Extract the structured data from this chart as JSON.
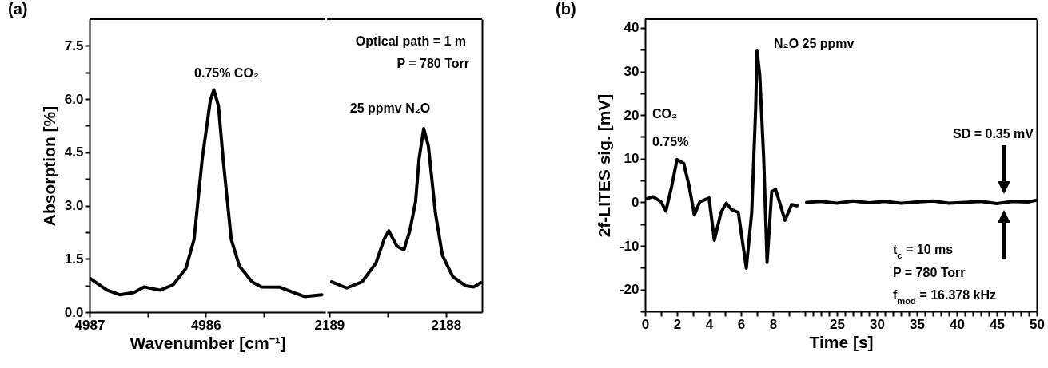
{
  "chart_data": [
    {
      "type": "line",
      "title": "(a)",
      "xlabel": "Wavenumber [cm⁻¹]",
      "ylabel": "Absorption [%]",
      "xlim": [
        4987,
        4984.97
      ],
      "ylim": [
        0,
        8.25
      ],
      "xticks": [
        4987,
        {
          "value": 4986.5,
          "label": null
        },
        4986,
        {
          "value": 4985.5,
          "label": null
        }
      ],
      "yticks": [
        {
          "value": 0,
          "label": "0.0"
        },
        {
          "value": 0.75,
          "label": null
        },
        1.5,
        {
          "value": 2.25,
          "label": null
        },
        {
          "value": 3,
          "label": "3.0"
        },
        {
          "value": 3.75,
          "label": null
        },
        4.5,
        {
          "value": 5.25,
          "label": null
        },
        {
          "value": 6,
          "label": "6.0"
        },
        {
          "value": 6.75,
          "label": null
        },
        7.5
      ],
      "x": [
        4987,
        4986.85,
        4986.74,
        4986.62,
        4986.53,
        4986.46,
        4986.39,
        4986.28,
        4986.17,
        4986.1,
        4986.03,
        4985.96,
        4985.93,
        4985.89,
        4985.85,
        4985.78,
        4985.71,
        4985.6,
        4985.52,
        4985.36,
        4985.24,
        4985.15,
        4985.0
      ],
      "series": [
        {
          "color": "#000000",
          "values": [
            0.96,
            0.62,
            0.49,
            0.55,
            0.71,
            0.66,
            0.62,
            0.77,
            1.23,
            2.05,
            4.31,
            5.96,
            6.26,
            5.81,
            4.31,
            2.05,
            1.3,
            0.85,
            0.71,
            0.7,
            0.55,
            0.44,
            0.49
          ]
        }
      ],
      "annotations": [
        {
          "text": "0.75% CO₂",
          "x": 4985.93,
          "y": 6.26
        }
      ]
    },
    {
      "type": "line",
      "xlim": [
        2189.02,
        2187.69
      ],
      "ylim": [
        0,
        8.25
      ],
      "tick_labels": "x",
      "xticks": [
        2189,
        {
          "value": 2188.5,
          "label": null
        },
        2188
      ],
      "x": [
        2188.98,
        2188.85,
        2188.72,
        2188.6,
        2188.53,
        2188.49,
        2188.42,
        2188.36,
        2188.31,
        2188.26,
        2188.23,
        2188.19,
        2188.15,
        2188.09,
        2188.03,
        2187.94,
        2187.83,
        2187.76,
        2187.7
      ],
      "series": [
        {
          "color": "#000000",
          "values": [
            0.85,
            0.68,
            0.85,
            1.38,
            2.05,
            2.29,
            1.86,
            1.75,
            2.28,
            3.11,
            4.31,
            5.17,
            4.68,
            2.8,
            1.6,
            1.0,
            0.74,
            0.71,
            0.83
          ]
        }
      ],
      "annotations": [
        "Optical path = 1 m",
        "P = 780 Torr",
        {
          "text": "25 ppmv N₂O",
          "x": 2188.19,
          "y": 5.17
        }
      ]
    },
    {
      "type": "line",
      "title": "(b)",
      "ylabel": "2f-LITES sig. [mV]",
      "xlim": [
        0,
        9.75
      ],
      "ylim": [
        -25,
        42
      ],
      "xticks": [
        0,
        {
          "value": 1,
          "label": null
        },
        2,
        {
          "value": 3,
          "label": null
        },
        4,
        {
          "value": 5,
          "label": null
        },
        6,
        {
          "value": 7,
          "label": null
        },
        8,
        {
          "value": 9,
          "label": null
        }
      ],
      "yticks": [
        {
          "value": -25,
          "label": null
        },
        -20,
        {
          "value": -15,
          "label": null
        },
        -10,
        {
          "value": -5,
          "label": null
        },
        0,
        {
          "value": 5,
          "label": null
        },
        10,
        {
          "value": 15,
          "label": null
        },
        20,
        {
          "value": 25,
          "label": null
        },
        30,
        {
          "value": 35,
          "label": null
        },
        40
      ],
      "x": [
        0,
        0.5,
        1,
        1.3,
        1.67,
        2,
        2.42,
        2.75,
        3.08,
        3.42,
        4,
        4.33,
        4.75,
        5.08,
        5.42,
        5.83,
        6.33,
        6.67,
        6.92,
        7,
        7.17,
        7.42,
        7.63,
        7.92,
        8.17,
        8.75,
        9.17,
        9.5
      ],
      "series": [
        {
          "color": "#000000",
          "values": [
            0.7,
            1.3,
            0.1,
            -2,
            3.8,
            9.8,
            8.9,
            3.8,
            -2.9,
            0.1,
            1,
            -8.7,
            -2.3,
            -0.2,
            -1.7,
            -2.3,
            -15.1,
            -2.3,
            22,
            34.7,
            29.3,
            9.8,
            -13.8,
            2.5,
            2.9,
            -4.1,
            -0.5,
            -0.8
          ]
        }
      ],
      "annotations": [
        "CO₂",
        "0.75%",
        {
          "text": "N₂O 25 ppmv",
          "x": 7,
          "y": 34.7
        }
      ]
    },
    {
      "type": "line",
      "xlabel": "Time [s]",
      "xlim": [
        20.5,
        50
      ],
      "ylim": [
        -25,
        42
      ],
      "tick_labels": "x",
      "xticks": [
        {
          "value": 21,
          "label": null
        },
        {
          "value": 22,
          "label": null
        },
        {
          "value": 23,
          "label": null
        },
        {
          "value": 24,
          "label": null
        },
        25,
        {
          "value": 26,
          "label": null
        },
        {
          "value": 27,
          "label": null
        },
        {
          "value": 28,
          "label": null
        },
        {
          "value": 29,
          "label": null
        },
        30,
        {
          "value": 31,
          "label": null
        },
        {
          "value": 32,
          "label": null
        },
        {
          "value": 33,
          "label": null
        },
        {
          "value": 34,
          "label": null
        },
        35,
        {
          "value": 36,
          "label": null
        },
        {
          "value": 37,
          "label": null
        },
        {
          "value": 38,
          "label": null
        },
        {
          "value": 39,
          "label": null
        },
        40,
        {
          "value": 41,
          "label": null
        },
        {
          "value": 42,
          "label": null
        },
        {
          "value": 43,
          "label": null
        },
        {
          "value": 44,
          "label": null
        },
        45,
        {
          "value": 46,
          "label": null
        },
        {
          "value": 47,
          "label": null
        },
        {
          "value": 48,
          "label": null
        },
        {
          "value": 49,
          "label": null
        },
        50
      ],
      "x": [
        21.2,
        23,
        25,
        27,
        29,
        31,
        33,
        35,
        37,
        39,
        41,
        43,
        45,
        47,
        49,
        50
      ],
      "series": [
        {
          "color": "#000000",
          "values": [
            0,
            0.2,
            -0.2,
            0.3,
            -0.1,
            0.2,
            -0.2,
            0.1,
            0.3,
            -0.2,
            0,
            0.2,
            -0.3,
            0.2,
            0.1,
            0.5
          ]
        }
      ],
      "annotations": [
        "SD = 0.35 mV",
        "t$_{c}$ = 10 ms",
        "P = 780 Torr",
        "f$_{mod}$ = 16.378 kHz"
      ]
    }
  ]
}
